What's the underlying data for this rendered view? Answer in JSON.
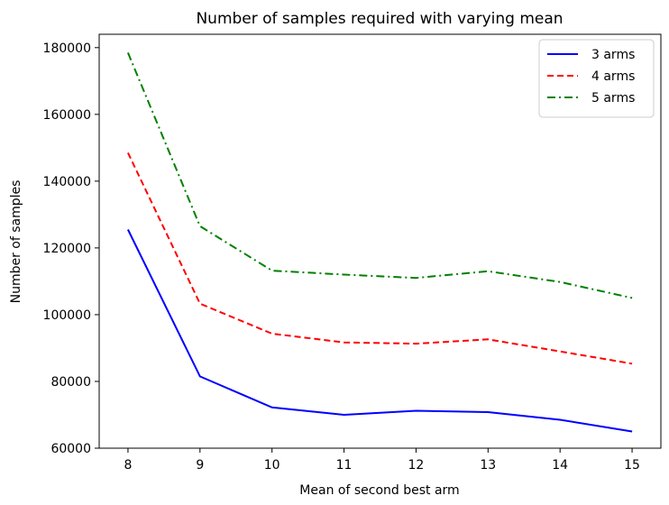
{
  "chart_data": {
    "type": "line",
    "title": "Number of samples required with varying mean",
    "xlabel": "Mean of second best arm",
    "ylabel": "Number of samples",
    "x": [
      8,
      9,
      10,
      11,
      12,
      13,
      14,
      15
    ],
    "xlim": [
      7.6,
      15.4
    ],
    "ylim": [
      60000,
      184000
    ],
    "xticks": [
      8,
      9,
      10,
      11,
      12,
      13,
      14,
      15
    ],
    "yticks": [
      60000,
      80000,
      100000,
      120000,
      140000,
      160000,
      180000
    ],
    "xtick_labels": [
      "8",
      "9",
      "10",
      "11",
      "12",
      "13",
      "14",
      "15"
    ],
    "ytick_labels": [
      "60000",
      "80000",
      "100000",
      "120000",
      "140000",
      "160000",
      "180000"
    ],
    "grid": false,
    "legend_position": "top-right",
    "series": [
      {
        "name": "3 arms",
        "color": "#0000ff",
        "style": "solid",
        "values": [
          125500,
          81500,
          72200,
          70000,
          71200,
          70800,
          68500,
          65000
        ]
      },
      {
        "name": "4 arms",
        "color": "#ff0000",
        "style": "dashed",
        "values": [
          148500,
          103300,
          94300,
          91700,
          91300,
          92600,
          89000,
          85300
        ]
      },
      {
        "name": "5 arms",
        "color": "#008000",
        "style": "dashdot",
        "values": [
          178500,
          126500,
          113200,
          112000,
          111000,
          113000,
          109800,
          105000
        ]
      }
    ]
  }
}
